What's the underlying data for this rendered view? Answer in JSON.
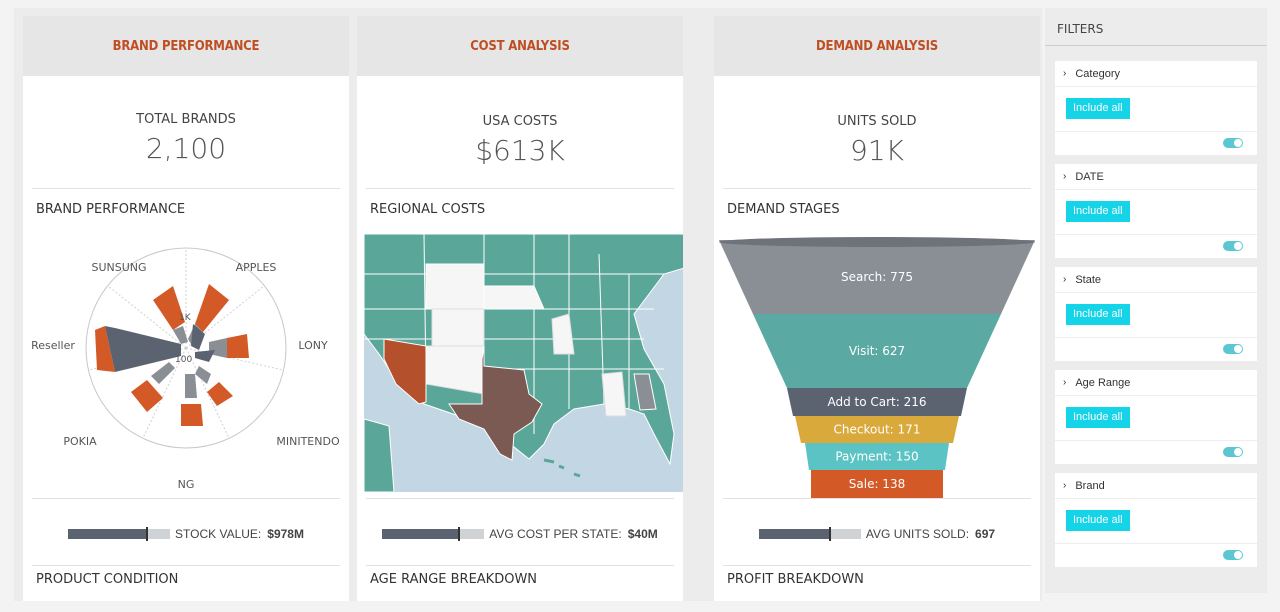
{
  "cards": [
    {
      "header": "BRAND PERFORMANCE",
      "kpi_label": "TOTAL BRANDS",
      "kpi_value": "2,100",
      "section_title": "BRAND PERFORMANCE",
      "stat_label": "STOCK VALUE:",
      "stat_value": "$978M",
      "footer_title": "PRODUCT CONDITION"
    },
    {
      "header": "COST ANALYSIS",
      "kpi_label": "USA COSTS",
      "kpi_value": "$613K",
      "section_title": "REGIONAL COSTS",
      "stat_label": "AVG COST PER STATE:",
      "stat_value": "$40M",
      "footer_title": "AGE RANGE BREAKDOWN"
    },
    {
      "header": "DEMAND ANALYSIS",
      "kpi_label": "UNITS SOLD",
      "kpi_value": "91K",
      "section_title": "DEMAND STAGES",
      "stat_label": "AVG UNITS SOLD:",
      "stat_value": "697",
      "footer_title": "PROFIT BREAKDOWN"
    }
  ],
  "radar": {
    "labels": [
      "SUNSUNG",
      "APPLES",
      "LONY",
      "MINITENDO",
      "NG",
      "POKIA",
      "Reseller"
    ],
    "tick_labels": [
      "1K",
      "100"
    ]
  },
  "funnel": {
    "stages": [
      {
        "name": "Search",
        "value": 775,
        "label": "Search: 775",
        "color": "#8a8f96"
      },
      {
        "name": "Visit",
        "value": 627,
        "label": "Visit: 627",
        "color": "#5aaaa3"
      },
      {
        "name": "Add to Cart",
        "value": 216,
        "label": "Add to Cart: 216",
        "color": "#5b6270"
      },
      {
        "name": "Checkout",
        "value": 171,
        "label": "Checkout: 171",
        "color": "#d9a93c"
      },
      {
        "name": "Payment",
        "value": 150,
        "label": "Payment: 150",
        "color": "#5cc3c5"
      },
      {
        "name": "Sale",
        "value": 138,
        "label": "Sale: 138",
        "color": "#d35a26"
      }
    ]
  },
  "map": {
    "highlight_colors": {
      "high": "#7a5a52",
      "mid": "#b4502c",
      "base": "#5aa79a",
      "low": "#f6f6f6",
      "water": "#c2d7e3"
    }
  },
  "filters": {
    "title": "FILTERS",
    "items": [
      {
        "label": "Category",
        "button": "Include all"
      },
      {
        "label": "DATE",
        "button": "Include all"
      },
      {
        "label": "State",
        "button": "Include all"
      },
      {
        "label": "Age Range",
        "button": "Include all"
      },
      {
        "label": "Brand",
        "button": "Include all"
      }
    ]
  }
}
